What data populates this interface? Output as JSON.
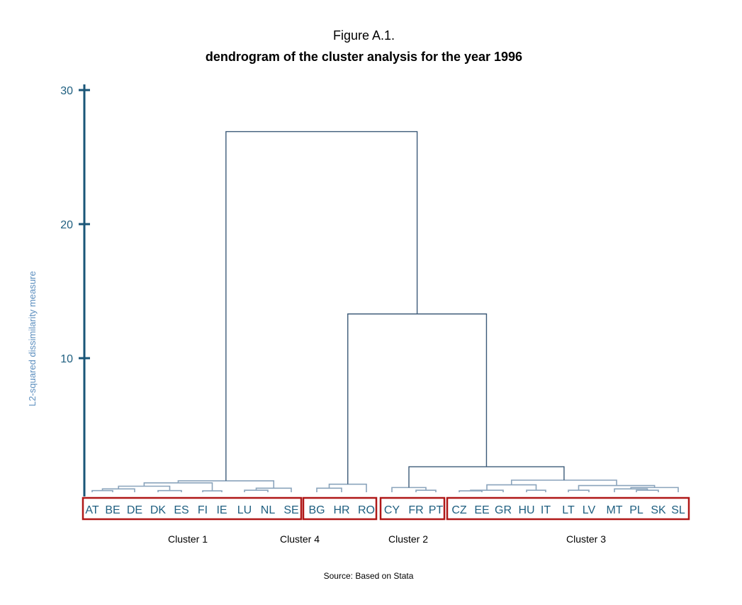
{
  "header": {
    "figure_label": "Figure A.1.",
    "title": "dendrogram of the cluster analysis for the year 1996"
  },
  "chart_data": {
    "type": "dendrogram",
    "ylabel": "L2-squared dissimilarity measure",
    "ylim": [
      0,
      30
    ],
    "yticks": [
      10,
      20,
      30
    ],
    "leaves": [
      "AT",
      "BE",
      "DE",
      "DK",
      "ES",
      "FI",
      "IE",
      "LU",
      "NL",
      "SE",
      "BG",
      "HR",
      "RO",
      "CY",
      "FR",
      "PT",
      "CZ",
      "EE",
      "GR",
      "HU",
      "IT",
      "LT",
      "LV",
      "MT",
      "PL",
      "SK",
      "SL"
    ],
    "merges": [
      {
        "left": "AT",
        "right": "BE",
        "height": 0.12
      },
      {
        "left": "AT,BE",
        "right": "DE",
        "height": 0.25
      },
      {
        "left": "DK",
        "right": "ES",
        "height": 0.12
      },
      {
        "left": "AT,BE,DE",
        "right": "DK,ES",
        "height": 0.45
      },
      {
        "left": "FI",
        "right": "IE",
        "height": 0.1
      },
      {
        "left": "AT..ES",
        "right": "FI,IE",
        "height": 0.7
      },
      {
        "left": "LU",
        "right": "NL",
        "height": 0.15
      },
      {
        "left": "LU,NL",
        "right": "SE",
        "height": 0.3
      },
      {
        "left": "AT..IE",
        "right": "LU,NL,SE",
        "height": 0.85
      },
      {
        "left": "BG",
        "right": "HR",
        "height": 0.3
      },
      {
        "left": "BG,HR",
        "right": "RO",
        "height": 0.6
      },
      {
        "left": "FR",
        "right": "PT",
        "height": 0.15
      },
      {
        "left": "CY",
        "right": "FR,PT",
        "height": 0.35
      },
      {
        "left": "CZ",
        "right": "EE",
        "height": 0.1
      },
      {
        "left": "CZ,EE",
        "right": "GR",
        "height": 0.15
      },
      {
        "left": "HU",
        "right": "IT",
        "height": 0.15
      },
      {
        "left": "CZ,EE,GR",
        "right": "HU,IT",
        "height": 0.55
      },
      {
        "left": "LT",
        "right": "LV",
        "height": 0.15
      },
      {
        "left": "PL",
        "right": "SK",
        "height": 0.15
      },
      {
        "left": "MT",
        "right": "PL,SK",
        "height": 0.25
      },
      {
        "left": "MT,PL,SK",
        "right": "SL",
        "height": 0.35
      },
      {
        "left": "LT,LV",
        "right": "MT..SL",
        "height": 0.5
      },
      {
        "left": "CZ..IT",
        "right": "LT..SL",
        "height": 0.9
      },
      {
        "left": "CY,FR,PT",
        "right": "CZ..SL",
        "height": 1.9
      },
      {
        "left": "BG,HR,RO",
        "right": "CY..SL",
        "height": 13.3
      },
      {
        "left": "AT..SE",
        "right": "BG..SL",
        "height": 26.9
      }
    ],
    "clusters": [
      {
        "name": "Cluster 1",
        "members": [
          "AT",
          "BE",
          "DE",
          "DK",
          "ES",
          "FI",
          "IE",
          "LU",
          "NL",
          "SE"
        ]
      },
      {
        "name": "Cluster 4",
        "members": [
          "BG",
          "HR",
          "RO"
        ]
      },
      {
        "name": "Cluster 2",
        "members": [
          "CY",
          "FR",
          "PT"
        ]
      },
      {
        "name": "Cluster 3",
        "members": [
          "CZ",
          "EE",
          "GR",
          "HU",
          "IT",
          "LT",
          "LV",
          "MT",
          "PL",
          "SK",
          "SL"
        ]
      }
    ],
    "colors": {
      "axis": "#1a5678",
      "tick_text": "#1f5f80",
      "ylabel": "#5d8fbf",
      "branch": "#3c5a78",
      "low_branch": "#8aa4bc",
      "leaf_text": "#1f5f80",
      "cluster_box": "#b01818"
    }
  },
  "footer": {
    "source": "Source: Based on Stata"
  }
}
